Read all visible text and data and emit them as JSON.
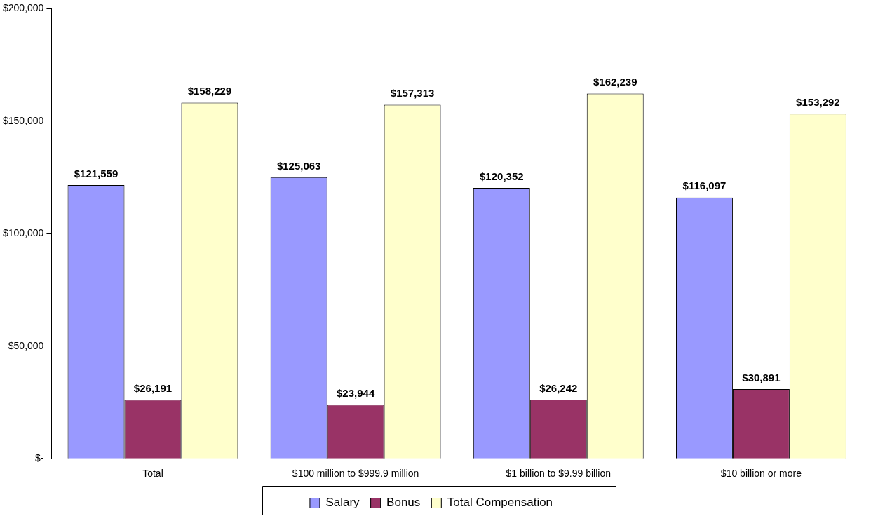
{
  "chart_data": {
    "type": "bar",
    "categories": [
      "Total",
      "$100 million to $999.9 million",
      "$1 billion to $9.99 billion",
      "$10 billion or more"
    ],
    "series": [
      {
        "name": "Salary",
        "color": "#9999ff",
        "values": [
          121559,
          125063,
          120352,
          116097
        ],
        "value_labels": [
          "$121,559",
          "$125,063",
          "$120,352",
          "$116,097"
        ]
      },
      {
        "name": "Bonus",
        "color": "#993366",
        "values": [
          26191,
          23944,
          26242,
          30891
        ],
        "value_labels": [
          "$26,191",
          "$23,944",
          "$26,242",
          "$30,891"
        ]
      },
      {
        "name": "Total Compensation",
        "color": "#ffffcc",
        "values": [
          158229,
          157313,
          162239,
          153292
        ],
        "value_labels": [
          "$158,229",
          "$157,313",
          "$162,239",
          "$153,292"
        ]
      }
    ],
    "ylim": [
      0,
      200000
    ],
    "yticks": [
      {
        "value": 0,
        "label": "$-"
      },
      {
        "value": 50000,
        "label": "$50,000"
      },
      {
        "value": 100000,
        "label": "$100,000"
      },
      {
        "value": 150000,
        "label": "$150,000"
      },
      {
        "value": 200000,
        "label": "$200,000"
      }
    ],
    "grid": false,
    "legend": "bottom"
  }
}
